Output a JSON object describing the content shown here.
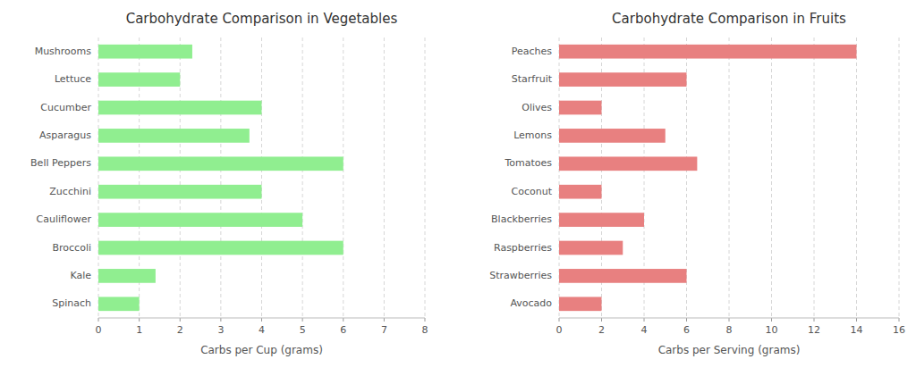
{
  "chart_data": [
    {
      "type": "bar",
      "orientation": "horizontal",
      "title": "Carbohydrate Comparison in Vegetables",
      "xlabel": "Carbs per Cup (grams)",
      "categories": [
        "Mushrooms",
        "Lettuce",
        "Cucumber",
        "Asparagus",
        "Bell Peppers",
        "Zucchini",
        "Cauliflower",
        "Broccoli",
        "Kale",
        "Spinach"
      ],
      "values": [
        2.3,
        2.0,
        4.0,
        3.7,
        6.0,
        4.0,
        5.0,
        6.0,
        1.4,
        1.0
      ],
      "color": "#90EE90",
      "xlim": [
        0,
        8
      ],
      "xticks": [
        0,
        1,
        2,
        3,
        4,
        5,
        6,
        7,
        8
      ],
      "grid": true
    },
    {
      "type": "bar",
      "orientation": "horizontal",
      "title": "Carbohydrate Comparison in Fruits",
      "xlabel": "Carbs per Serving (grams)",
      "categories": [
        "Peaches",
        "Starfruit",
        "Olives",
        "Lemons",
        "Tomatoes",
        "Coconut",
        "Blackberries",
        "Raspberries",
        "Strawberries",
        "Avocado"
      ],
      "values": [
        14.0,
        6.0,
        2.0,
        5.0,
        6.5,
        2.0,
        4.0,
        3.0,
        6.0,
        2.0
      ],
      "color": "#E88080",
      "xlim": [
        0,
        16
      ],
      "xticks": [
        0,
        2,
        4,
        6,
        8,
        10,
        12,
        14,
        16
      ],
      "grid": true
    }
  ]
}
